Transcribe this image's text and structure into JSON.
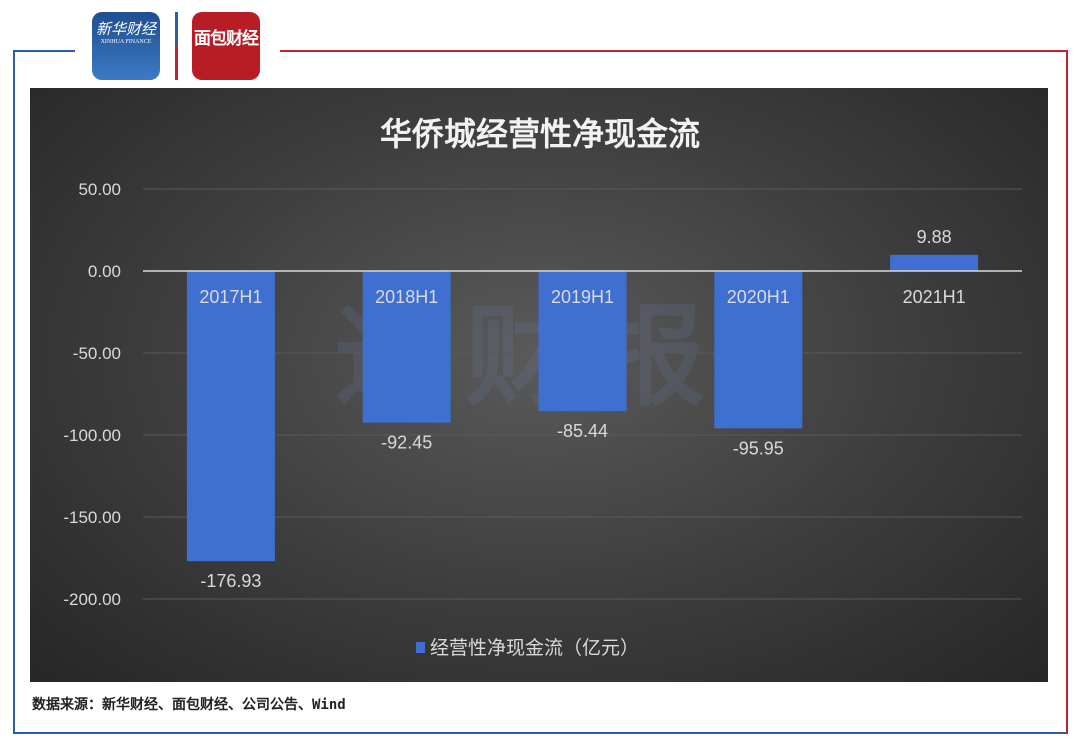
{
  "logos": {
    "xinhua": {
      "name": "新华财经",
      "sub": "XINHUA FINANCE"
    },
    "mianbao": {
      "name": "面包财经"
    }
  },
  "watermark": "通财报",
  "source": "数据来源：新华财经、面包财经、公司公告、Wind",
  "colors": {
    "bar": "#3e6fd1",
    "background": "#3a3a3a",
    "grid": "#595959",
    "text": "#d9d9d9"
  },
  "chart_data": {
    "type": "bar",
    "title": "华侨城经营性净现金流",
    "categories": [
      "2017H1",
      "2018H1",
      "2019H1",
      "2020H1",
      "2021H1"
    ],
    "series": [
      {
        "name": "经营性净现金流（亿元）",
        "values": [
          -176.93,
          -92.45,
          -85.44,
          -95.95,
          9.88
        ]
      }
    ],
    "value_labels": [
      "-176.93",
      "-92.45",
      "-85.44",
      "-95.95",
      "9.88"
    ],
    "ylim": [
      -200,
      50
    ],
    "yticks": [
      "50.00",
      "0.00",
      "-50.00",
      "-100.00",
      "-150.00",
      "-200.00"
    ],
    "ytick_values": [
      50,
      0,
      -50,
      -100,
      -150,
      -200
    ],
    "grid": true,
    "legend": "bottom"
  }
}
